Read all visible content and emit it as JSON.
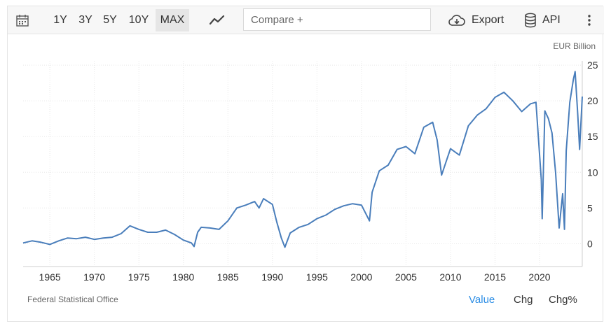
{
  "toolbar": {
    "ranges": [
      "1Y",
      "3Y",
      "5Y",
      "10Y",
      "MAX"
    ],
    "active_range": "MAX",
    "compare_placeholder": "Compare +",
    "export_label": "Export",
    "api_label": "API"
  },
  "footer": {
    "source": "Federal Statistical Office",
    "modes": [
      "Value",
      "Chg",
      "Chg%"
    ],
    "active_mode": "Value"
  },
  "colors": {
    "line": "#4a7ebb",
    "active_mode": "#2d8ee5",
    "grid": "#e8e8e8",
    "toolbar_bg": "#f7f7f7"
  },
  "icons": [
    "calendar-icon",
    "line-chart-icon",
    "cloud-download-icon",
    "database-icon",
    "more-vertical-icon"
  ],
  "chart_data": {
    "type": "line",
    "unit_label": "EUR Billion",
    "title": "",
    "xlabel": "",
    "ylabel": "",
    "x_ticks": [
      "1965",
      "1970",
      "1975",
      "1980",
      "1985",
      "1990",
      "1995",
      "2000",
      "2005",
      "2010",
      "2015",
      "2020"
    ],
    "y_ticks": [
      "0",
      "5",
      "10",
      "15",
      "20",
      "25"
    ],
    "xlim": [
      1962.0,
      2024.8
    ],
    "ylim": [
      -3.2,
      25.6
    ],
    "grid": true,
    "y_axis_side": "right",
    "series": [
      {
        "name": "",
        "points": [
          [
            1962.0,
            0.1
          ],
          [
            1963.0,
            0.4
          ],
          [
            1964.0,
            0.2
          ],
          [
            1965.0,
            -0.1
          ],
          [
            1966.0,
            0.4
          ],
          [
            1967.0,
            0.8
          ],
          [
            1968.0,
            0.7
          ],
          [
            1969.0,
            0.9
          ],
          [
            1970.0,
            0.6
          ],
          [
            1971.0,
            0.8
          ],
          [
            1972.0,
            0.9
          ],
          [
            1973.0,
            1.4
          ],
          [
            1974.0,
            2.5
          ],
          [
            1975.0,
            2.0
          ],
          [
            1976.0,
            1.6
          ],
          [
            1977.0,
            1.6
          ],
          [
            1978.0,
            1.9
          ],
          [
            1979.0,
            1.3
          ],
          [
            1980.0,
            0.5
          ],
          [
            1980.9,
            0.1
          ],
          [
            1981.2,
            -0.4
          ],
          [
            1981.6,
            1.6
          ],
          [
            1982.0,
            2.3
          ],
          [
            1983.0,
            2.2
          ],
          [
            1984.0,
            2.0
          ],
          [
            1985.0,
            3.2
          ],
          [
            1986.0,
            5.0
          ],
          [
            1987.0,
            5.4
          ],
          [
            1988.0,
            5.9
          ],
          [
            1988.5,
            5.0
          ],
          [
            1989.0,
            6.3
          ],
          [
            1990.0,
            5.5
          ],
          [
            1990.5,
            3.0
          ],
          [
            1991.0,
            0.8
          ],
          [
            1991.4,
            -0.5
          ],
          [
            1992.0,
            1.5
          ],
          [
            1993.0,
            2.3
          ],
          [
            1994.0,
            2.7
          ],
          [
            1995.0,
            3.5
          ],
          [
            1996.0,
            4.0
          ],
          [
            1997.0,
            4.8
          ],
          [
            1998.0,
            5.3
          ],
          [
            1999.0,
            5.6
          ],
          [
            2000.0,
            5.4
          ],
          [
            2000.9,
            3.2
          ],
          [
            2001.2,
            7.2
          ],
          [
            2002.0,
            10.2
          ],
          [
            2003.0,
            11.0
          ],
          [
            2004.0,
            13.2
          ],
          [
            2005.0,
            13.6
          ],
          [
            2006.0,
            12.6
          ],
          [
            2007.0,
            16.3
          ],
          [
            2008.0,
            17.0
          ],
          [
            2008.5,
            14.5
          ],
          [
            2009.0,
            9.6
          ],
          [
            2010.0,
            13.3
          ],
          [
            2011.0,
            12.4
          ],
          [
            2012.0,
            16.5
          ],
          [
            2013.0,
            18.0
          ],
          [
            2014.0,
            18.9
          ],
          [
            2015.0,
            20.5
          ],
          [
            2016.0,
            21.2
          ],
          [
            2017.0,
            20.0
          ],
          [
            2018.0,
            18.5
          ],
          [
            2019.0,
            19.6
          ],
          [
            2019.6,
            19.8
          ],
          [
            2020.2,
            9.0
          ],
          [
            2020.3,
            3.5
          ],
          [
            2020.6,
            18.6
          ],
          [
            2021.0,
            17.5
          ],
          [
            2021.4,
            15.5
          ],
          [
            2021.8,
            10.0
          ],
          [
            2022.2,
            2.2
          ],
          [
            2022.6,
            7.0
          ],
          [
            2022.8,
            2.0
          ],
          [
            2023.0,
            13.0
          ],
          [
            2023.4,
            19.8
          ],
          [
            2023.8,
            23.0
          ],
          [
            2024.0,
            24.1
          ],
          [
            2024.3,
            18.0
          ],
          [
            2024.5,
            13.2
          ],
          [
            2024.8,
            20.6
          ]
        ]
      }
    ]
  }
}
